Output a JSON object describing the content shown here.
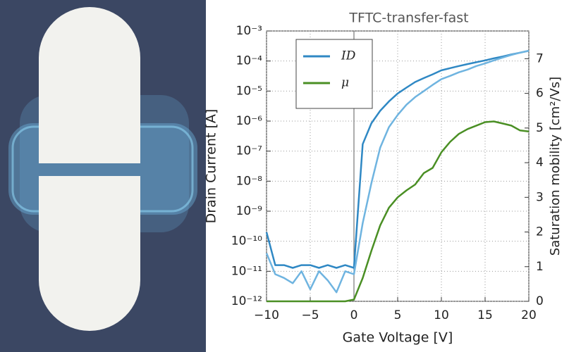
{
  "chart_data": {
    "type": "line",
    "title": "TFTC-transfer-fast",
    "xlabel": "Gate Voltage [V]",
    "ylabel": "Drain Current [A]",
    "y2label": "Saturation mobility [cm²/Vs]",
    "yscale": "log",
    "grid": true,
    "legend": "upper left",
    "vline": 0,
    "x": [
      -10,
      -9,
      -8,
      -7,
      -6,
      -5,
      -4,
      -3,
      -2,
      -1,
      0,
      1,
      2,
      3,
      4,
      5,
      6,
      7,
      8,
      9,
      10,
      11,
      12,
      13,
      14,
      15,
      16,
      17,
      18,
      19,
      20
    ],
    "series": [
      {
        "name": "ID",
        "color": "#2f88c4",
        "values": [
          2e-10,
          1.6e-11,
          1.6e-11,
          1.3e-11,
          1.6e-11,
          1.6e-11,
          1.3e-11,
          1.6e-11,
          1.3e-11,
          1.6e-11,
          1.3e-11,
          1.7e-07,
          8.5e-07,
          2.2e-06,
          4.5e-06,
          8.3e-06,
          1.3e-05,
          2e-05,
          2.7e-05,
          3.6e-05,
          4.9e-05,
          5.8e-05,
          6.8e-05,
          7.9e-05,
          9.1e-05,
          0.000105,
          0.000123,
          0.00014,
          0.000166,
          0.00019,
          0.00022
        ]
      },
      {
        "color": "#6fb4e0",
        "values": [
          4e-11,
          8e-12,
          6e-12,
          4e-12,
          1e-11,
          2.5e-12,
          1e-11,
          5e-12,
          2e-12,
          1e-11,
          8e-12,
          4e-10,
          8.7e-09,
          1.3e-07,
          6.3e-07,
          1.6e-06,
          3.5e-06,
          6.3e-06,
          1e-05,
          1.6e-05,
          2.5e-05,
          3.2e-05,
          4.2e-05,
          5.2e-05,
          6.8e-05,
          8.3e-05,
          0.000105,
          0.00013,
          0.00016,
          0.00019,
          0.00022
        ]
      },
      {
        "name": "μ",
        "color": "#4a8f24",
        "axis": "y2",
        "values": [
          0,
          0,
          0,
          0,
          0,
          0,
          0,
          0,
          0,
          0,
          0.05,
          0.67,
          1.46,
          2.19,
          2.7,
          3.0,
          3.2,
          3.37,
          3.7,
          3.85,
          4.3,
          4.6,
          4.83,
          4.97,
          5.07,
          5.17,
          5.19,
          5.13,
          5.07,
          4.93,
          4.9
        ]
      }
    ],
    "xlim": [
      -10,
      20
    ],
    "xticks": [
      {
        "value": -10,
        "label": "−10"
      },
      {
        "value": -5,
        "label": "−5"
      },
      0,
      5,
      10,
      15,
      20
    ],
    "ylim": [
      1e-12,
      0.001
    ],
    "yticks": [
      {
        "value": 1e-12,
        "label": "10⁻¹²"
      },
      {
        "value": 1e-11,
        "label": "10⁻¹¹"
      },
      {
        "value": 1e-10,
        "label": "10⁻¹⁰"
      },
      {
        "value": 1e-09,
        "label": "10⁻⁹"
      },
      {
        "value": 1e-08,
        "label": "10⁻⁸"
      },
      {
        "value": 1e-07,
        "label": "10⁻⁷"
      },
      {
        "value": 1e-06,
        "label": "10⁻⁶"
      },
      {
        "value": 1e-05,
        "label": "10⁻⁵"
      },
      {
        "value": 0.0001,
        "label": "10⁻⁴"
      },
      {
        "value": 0.001,
        "label": "10⁻³"
      }
    ],
    "y2lim": [
      0,
      7.8
    ],
    "y2ticks": [
      0,
      1,
      2,
      3,
      4,
      5,
      6,
      7
    ]
  }
}
